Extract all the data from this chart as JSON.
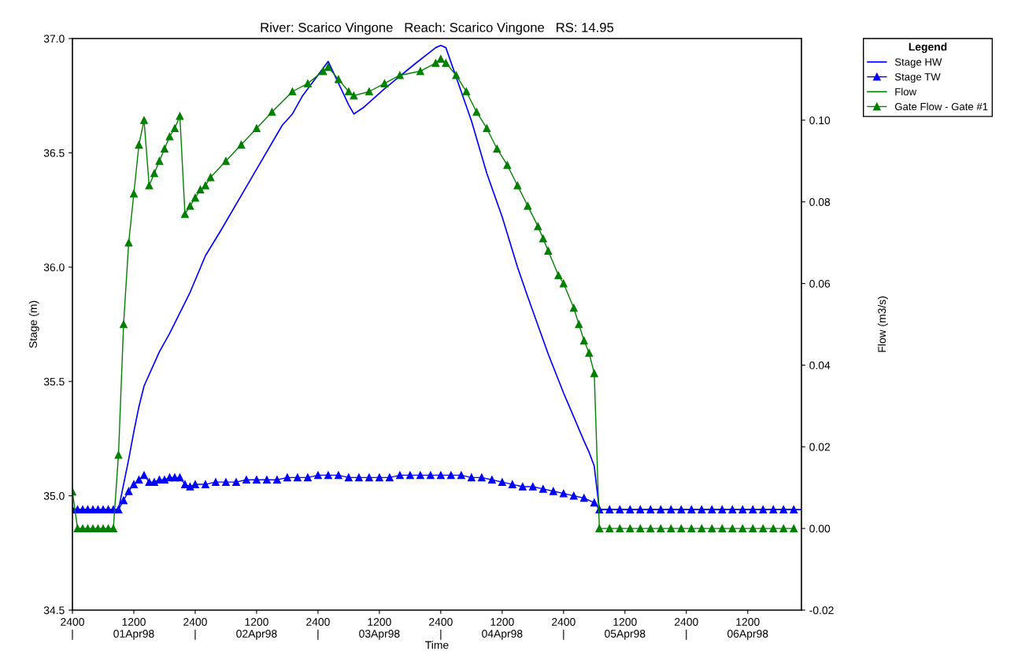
{
  "chart_data": {
    "type": "line",
    "title": "River: Scarico Vingone   Reach: Scarico Vingone   RS: 14.95",
    "xlabel": "Time",
    "ylabel": "Stage (m)",
    "y2label": "Flow (m3/s)",
    "legend_title": "Legend",
    "xlim": [
      "1998-04-01T00:00",
      "1998-04-06T22:30"
    ],
    "xticks": [
      {
        "value": "1998-04-01T00:00",
        "label": "2400\n|"
      },
      {
        "value": "1998-04-01T12:00",
        "label": "1200\n01Apr98"
      },
      {
        "value": "1998-04-02T00:00",
        "label": "2400\n|"
      },
      {
        "value": "1998-04-02T12:00",
        "label": "1200\n02Apr98"
      },
      {
        "value": "1998-04-03T00:00",
        "label": "2400\n|"
      },
      {
        "value": "1998-04-03T12:00",
        "label": "1200\n03Apr98"
      },
      {
        "value": "1998-04-04T00:00",
        "label": "2400\n|"
      },
      {
        "value": "1998-04-04T12:00",
        "label": "1200\n04Apr98"
      },
      {
        "value": "1998-04-05T00:00",
        "label": "2400\n|"
      },
      {
        "value": "1998-04-05T12:00",
        "label": "1200\n05Apr98"
      },
      {
        "value": "1998-04-06T00:00",
        "label": "2400\n|"
      },
      {
        "value": "1998-04-06T12:00",
        "label": "1200\n06Apr98"
      }
    ],
    "ylim": [
      34.5,
      37.0
    ],
    "yticks": [
      {
        "value": 34.5,
        "label": "34.5"
      },
      {
        "value": 35.0,
        "label": "35.0"
      },
      {
        "value": 35.5,
        "label": "35.5"
      },
      {
        "value": 36.0,
        "label": "36.0"
      },
      {
        "value": 36.5,
        "label": "36.5"
      },
      {
        "value": 37.0,
        "label": "37.0"
      }
    ],
    "y2lim": [
      -0.02,
      0.12
    ],
    "y2ticks": [
      {
        "value": -0.02,
        "label": "-0.02"
      },
      {
        "value": 0.0,
        "label": "0.00"
      },
      {
        "value": 0.02,
        "label": "0.02"
      },
      {
        "value": 0.04,
        "label": "0.04"
      },
      {
        "value": 0.06,
        "label": "0.06"
      },
      {
        "value": 0.08,
        "label": "0.08"
      },
      {
        "value": 0.1,
        "label": "0.10"
      }
    ],
    "grid": false,
    "legend": "top right",
    "series": [
      {
        "name": "Stage HW",
        "color": "#0000ff",
        "marker": "none",
        "axis": "y",
        "x": [
          "1998-04-01T00:00",
          "1998-04-01T04:00",
          "1998-04-01T08:00",
          "1998-04-01T09:00",
          "1998-04-01T11:00",
          "1998-04-01T12:00",
          "1998-04-01T13:00",
          "1998-04-01T14:00",
          "1998-04-01T17:00",
          "1998-04-01T19:00",
          "1998-04-01T23:00",
          "1998-04-02T02:00",
          "1998-04-02T05:00",
          "1998-04-02T11:00",
          "1998-04-02T17:00",
          "1998-04-02T19:00",
          "1998-04-02T21:00",
          "1998-04-03T02:00",
          "1998-04-03T06:00",
          "1998-04-03T07:00",
          "1998-04-03T09:00",
          "1998-04-03T13:00",
          "1998-04-03T19:00",
          "1998-04-03T23:00",
          "1998-04-04T00:00",
          "1998-04-04T01:00",
          "1998-04-04T03:30",
          "1998-04-04T06:00",
          "1998-04-04T09:00",
          "1998-04-04T12:00",
          "1998-04-04T15:00",
          "1998-04-04T17:00",
          "1998-04-04T21:00",
          "1998-04-05T00:00",
          "1998-04-05T04:00",
          "1998-04-05T05:00",
          "1998-04-05T06:00",
          "1998-04-05T07:00",
          "1998-04-06T22:30"
        ],
        "values": [
          34.94,
          34.94,
          34.94,
          34.94,
          35.16,
          35.28,
          35.39,
          35.48,
          35.63,
          35.71,
          35.89,
          36.05,
          36.16,
          36.39,
          36.62,
          36.67,
          36.75,
          36.9,
          36.71,
          36.67,
          36.7,
          36.78,
          36.89,
          36.96,
          36.97,
          36.96,
          36.8,
          36.64,
          36.41,
          36.22,
          36.0,
          35.87,
          35.62,
          35.45,
          35.24,
          35.19,
          35.13,
          34.94,
          34.94
        ]
      },
      {
        "name": "Stage TW",
        "color": "#0000ff",
        "marker": "triangle",
        "axis": "y",
        "x": [
          "1998-04-01T00:00",
          "1998-04-01T01:00",
          "1998-04-01T02:00",
          "1998-04-01T03:00",
          "1998-04-01T04:00",
          "1998-04-01T05:00",
          "1998-04-01T06:00",
          "1998-04-01T07:00",
          "1998-04-01T08:00",
          "1998-04-01T09:00",
          "1998-04-01T10:00",
          "1998-04-01T11:00",
          "1998-04-01T12:00",
          "1998-04-01T13:00",
          "1998-04-01T14:00",
          "1998-04-01T15:00",
          "1998-04-01T16:00",
          "1998-04-01T17:00",
          "1998-04-01T18:00",
          "1998-04-01T19:00",
          "1998-04-01T20:00",
          "1998-04-01T21:00",
          "1998-04-01T22:00",
          "1998-04-01T23:00",
          "1998-04-02T00:00",
          "1998-04-02T02:00",
          "1998-04-02T04:00",
          "1998-04-02T06:00",
          "1998-04-02T08:00",
          "1998-04-02T10:00",
          "1998-04-02T12:00",
          "1998-04-02T14:00",
          "1998-04-02T16:00",
          "1998-04-02T18:00",
          "1998-04-02T20:00",
          "1998-04-02T22:00",
          "1998-04-03T00:00",
          "1998-04-03T02:00",
          "1998-04-03T04:00",
          "1998-04-03T06:00",
          "1998-04-03T08:00",
          "1998-04-03T10:00",
          "1998-04-03T12:00",
          "1998-04-03T14:00",
          "1998-04-03T16:00",
          "1998-04-03T18:00",
          "1998-04-03T20:00",
          "1998-04-03T22:00",
          "1998-04-04T00:00",
          "1998-04-04T02:00",
          "1998-04-04T04:00",
          "1998-04-04T06:00",
          "1998-04-04T08:00",
          "1998-04-04T10:00",
          "1998-04-04T12:00",
          "1998-04-04T14:00",
          "1998-04-04T16:00",
          "1998-04-04T18:00",
          "1998-04-04T20:00",
          "1998-04-04T22:00",
          "1998-04-05T00:00",
          "1998-04-05T02:00",
          "1998-04-05T04:00",
          "1998-04-05T06:00",
          "1998-04-05T07:00",
          "1998-04-05T09:00",
          "1998-04-05T11:00",
          "1998-04-05T13:00",
          "1998-04-05T15:00",
          "1998-04-05T17:00",
          "1998-04-05T19:00",
          "1998-04-05T21:00",
          "1998-04-05T23:00",
          "1998-04-06T01:00",
          "1998-04-06T03:00",
          "1998-04-06T05:00",
          "1998-04-06T07:00",
          "1998-04-06T09:00",
          "1998-04-06T11:00",
          "1998-04-06T13:00",
          "1998-04-06T15:00",
          "1998-04-06T17:00",
          "1998-04-06T19:00",
          "1998-04-06T21:00"
        ],
        "values": [
          34.94,
          34.94,
          34.94,
          34.94,
          34.94,
          34.94,
          34.94,
          34.94,
          34.94,
          34.94,
          34.98,
          35.02,
          35.05,
          35.07,
          35.09,
          35.06,
          35.06,
          35.07,
          35.07,
          35.08,
          35.08,
          35.08,
          35.05,
          35.04,
          35.05,
          35.05,
          35.06,
          35.06,
          35.06,
          35.07,
          35.07,
          35.07,
          35.07,
          35.08,
          35.08,
          35.08,
          35.09,
          35.09,
          35.09,
          35.08,
          35.08,
          35.08,
          35.08,
          35.08,
          35.09,
          35.09,
          35.09,
          35.09,
          35.09,
          35.09,
          35.09,
          35.08,
          35.08,
          35.07,
          35.06,
          35.05,
          35.04,
          35.04,
          35.03,
          35.02,
          35.01,
          35.0,
          34.99,
          34.97,
          34.94,
          34.94,
          34.94,
          34.94,
          34.94,
          34.94,
          34.94,
          34.94,
          34.94,
          34.94,
          34.94,
          34.94,
          34.94,
          34.94,
          34.94,
          34.94,
          34.94,
          34.94,
          34.94,
          34.94
        ]
      },
      {
        "name": "Flow",
        "color": "#008000",
        "marker": "none",
        "axis": "y2"
      },
      {
        "name": "Gate Flow - Gate #1",
        "color": "#008000",
        "marker": "triangle",
        "axis": "y2",
        "x": [
          "1998-04-01T00:00",
          "1998-04-01T01:00",
          "1998-04-01T02:00",
          "1998-04-01T03:00",
          "1998-04-01T04:00",
          "1998-04-01T05:00",
          "1998-04-01T06:00",
          "1998-04-01T07:00",
          "1998-04-01T08:00",
          "1998-04-01T09:00",
          "1998-04-01T10:00",
          "1998-04-01T11:00",
          "1998-04-01T12:00",
          "1998-04-01T13:00",
          "1998-04-01T14:00",
          "1998-04-01T15:00",
          "1998-04-01T16:00",
          "1998-04-01T17:00",
          "1998-04-01T18:00",
          "1998-04-01T19:00",
          "1998-04-01T20:00",
          "1998-04-01T21:00",
          "1998-04-01T22:00",
          "1998-04-01T23:00",
          "1998-04-02T00:00",
          "1998-04-02T01:00",
          "1998-04-02T02:00",
          "1998-04-02T03:00",
          "1998-04-02T06:00",
          "1998-04-02T09:00",
          "1998-04-02T12:00",
          "1998-04-02T15:00",
          "1998-04-02T19:00",
          "1998-04-02T22:00",
          "1998-04-03T01:00",
          "1998-04-03T02:00",
          "1998-04-03T04:00",
          "1998-04-03T06:00",
          "1998-04-03T07:00",
          "1998-04-03T10:00",
          "1998-04-03T13:00",
          "1998-04-03T16:00",
          "1998-04-03T20:00",
          "1998-04-03T23:00",
          "1998-04-04T00:00",
          "1998-04-04T01:00",
          "1998-04-04T03:00",
          "1998-04-04T05:00",
          "1998-04-04T07:00",
          "1998-04-04T09:00",
          "1998-04-04T11:00",
          "1998-04-04T13:00",
          "1998-04-04T15:00",
          "1998-04-04T17:00",
          "1998-04-04T19:00",
          "1998-04-04T20:00",
          "1998-04-04T21:00",
          "1998-04-04T23:00",
          "1998-04-05T00:00",
          "1998-04-05T02:00",
          "1998-04-05T03:00",
          "1998-04-05T04:00",
          "1998-04-05T05:00",
          "1998-04-05T06:00",
          "1998-04-05T07:00",
          "1998-04-05T09:00",
          "1998-04-05T11:00",
          "1998-04-05T13:00",
          "1998-04-05T15:00",
          "1998-04-05T17:00",
          "1998-04-05T19:00",
          "1998-04-05T21:00",
          "1998-04-05T23:00",
          "1998-04-06T01:00",
          "1998-04-06T03:00",
          "1998-04-06T05:00",
          "1998-04-06T07:00",
          "1998-04-06T09:00",
          "1998-04-06T11:00",
          "1998-04-06T13:00",
          "1998-04-06T15:00",
          "1998-04-06T17:00",
          "1998-04-06T19:00",
          "1998-04-06T21:00"
        ],
        "values": [
          0.009,
          0.0,
          0.0,
          0.0,
          0.0,
          0.0,
          0.0,
          0.0,
          0.0,
          0.018,
          0.05,
          0.07,
          0.082,
          0.094,
          0.1,
          0.084,
          0.087,
          0.09,
          0.093,
          0.096,
          0.098,
          0.101,
          0.077,
          0.079,
          0.081,
          0.083,
          0.084,
          0.086,
          0.09,
          0.094,
          0.098,
          0.102,
          0.107,
          0.109,
          0.112,
          0.113,
          0.11,
          0.107,
          0.106,
          0.107,
          0.109,
          0.111,
          0.112,
          0.114,
          0.115,
          0.114,
          0.111,
          0.107,
          0.102,
          0.098,
          0.093,
          0.089,
          0.084,
          0.079,
          0.074,
          0.071,
          0.068,
          0.062,
          0.06,
          0.054,
          0.05,
          0.046,
          0.043,
          0.038,
          0.0,
          0.0,
          0.0,
          0.0,
          0.0,
          0.0,
          0.0,
          0.0,
          0.0,
          0.0,
          0.0,
          0.0,
          0.0,
          0.0,
          0.0,
          0.0,
          0.0,
          0.0,
          0.0,
          0.0
        ]
      }
    ]
  }
}
